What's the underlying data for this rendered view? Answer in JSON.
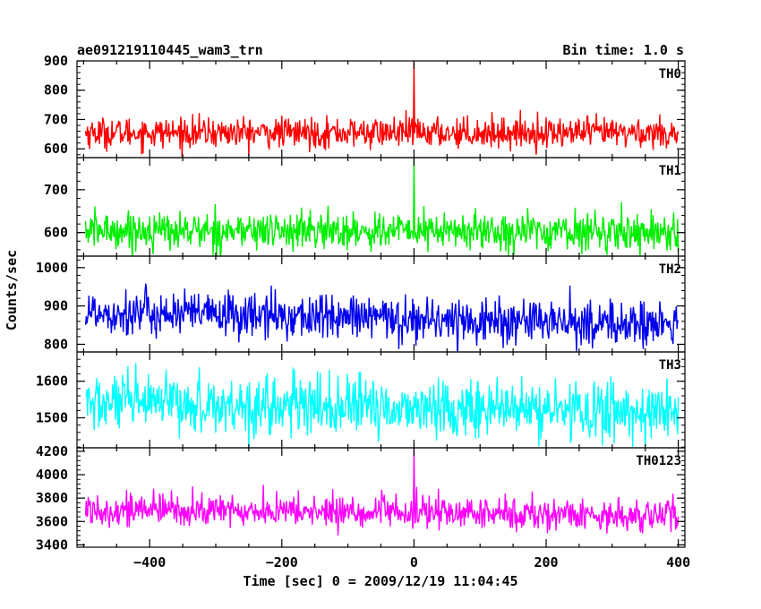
{
  "chart_data": {
    "type": "line",
    "title": "ae091219110445_wam3_trn",
    "subtitle": "Bin time: 1.0 s",
    "xlabel": "Time [sec] 0 = 2009/12/19 11:04:45",
    "ylabel": "Counts/sec",
    "xlim": [
      -510,
      410
    ],
    "x_ticks": [
      -400,
      -200,
      0,
      200,
      400
    ],
    "x_tick_labels": [
      "−400",
      "−200",
      "0",
      "200",
      "400"
    ],
    "x_range": [
      -497,
      400
    ],
    "bin_time": 1.0,
    "grid": false,
    "legend": "none",
    "series": [
      {
        "name": "TH0",
        "color": "#ff0000",
        "ylim": [
          570,
          900
        ],
        "y_ticks": [
          600,
          700,
          800,
          900
        ],
        "y_tick_labels": [
          "600",
          "700",
          "800",
          "900"
        ],
        "mean": 655,
        "noise": 26,
        "drift": 0,
        "spike": 900
      },
      {
        "name": "TH1",
        "color": "#00ee00",
        "ylim": [
          545,
          775
        ],
        "y_ticks": [
          600,
          700
        ],
        "y_tick_labels": [
          "600",
          "700"
        ],
        "mean": 605,
        "noise": 22,
        "drift": -3,
        "spike": 775
      },
      {
        "name": "TH2",
        "color": "#0000ee",
        "ylim": [
          780,
          1030
        ],
        "y_ticks": [
          800,
          900,
          1000
        ],
        "y_tick_labels": [
          "800",
          "900",
          "1000"
        ],
        "mean": 885,
        "noise": 30,
        "drift": -35,
        "spike": 905
      },
      {
        "name": "TH3",
        "color": "#00ffff",
        "ylim": [
          1418,
          1680
        ],
        "y_ticks": [
          1500,
          1600
        ],
        "y_tick_labels": [
          "1500",
          "1600"
        ],
        "mean": 1540,
        "noise": 40,
        "drift": -25,
        "spike": 1560
      },
      {
        "name": "TH0123",
        "color": "#ff00ff",
        "ylim": [
          3380,
          4230
        ],
        "y_ticks": [
          3400,
          3600,
          3800,
          4000,
          4200
        ],
        "y_tick_labels": [
          "3400",
          "3600",
          "3800",
          "4000",
          "4200"
        ],
        "mean": 3705,
        "noise": 70,
        "drift": -55,
        "spike": 4230
      }
    ]
  }
}
